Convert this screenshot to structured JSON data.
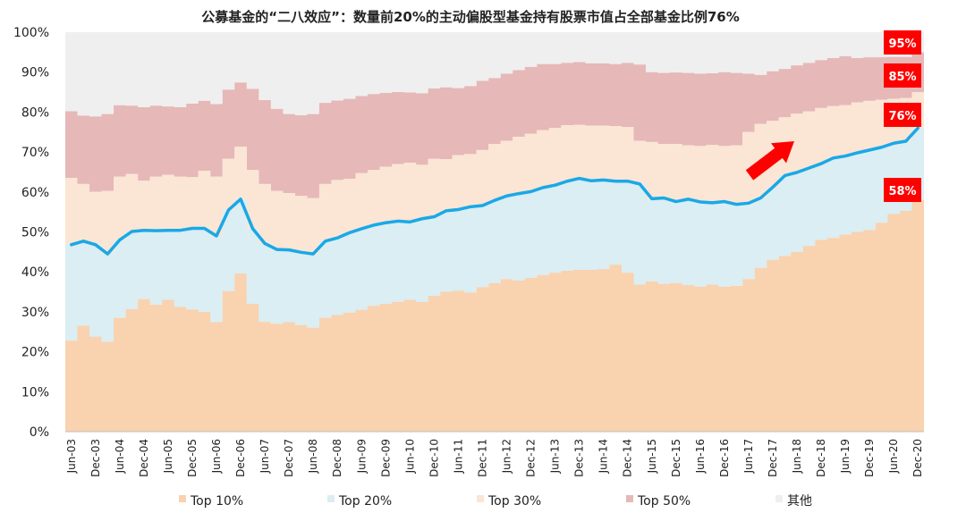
{
  "chart_data": {
    "type": "area",
    "title": "公募基金的“二八效应”：数量前20%的主动偏股型基金持有股票市值占全部基金比例76%",
    "xlabel": "",
    "ylabel": "",
    "ylim": [
      0,
      100
    ],
    "yticks": [
      "0%",
      "10%",
      "20%",
      "30%",
      "40%",
      "50%",
      "60%",
      "70%",
      "80%",
      "90%",
      "100%"
    ],
    "x": [
      "Jun-03",
      "Sep-03",
      "Dec-03",
      "Mar-04",
      "Jun-04",
      "Sep-04",
      "Dec-04",
      "Mar-05",
      "Jun-05",
      "Sep-05",
      "Dec-05",
      "Mar-06",
      "Jun-06",
      "Sep-06",
      "Dec-06",
      "Mar-07",
      "Jun-07",
      "Sep-07",
      "Dec-07",
      "Mar-08",
      "Jun-08",
      "Sep-08",
      "Dec-08",
      "Mar-09",
      "Jun-09",
      "Sep-09",
      "Dec-09",
      "Mar-10",
      "Jun-10",
      "Sep-10",
      "Dec-10",
      "Mar-11",
      "Jun-11",
      "Sep-11",
      "Dec-11",
      "Mar-12",
      "Jun-12",
      "Sep-12",
      "Dec-12",
      "Mar-13",
      "Jun-13",
      "Sep-13",
      "Dec-13",
      "Mar-14",
      "Jun-14",
      "Sep-14",
      "Dec-14",
      "Mar-15",
      "Jun-15",
      "Sep-15",
      "Dec-15",
      "Mar-16",
      "Jun-16",
      "Sep-16",
      "Dec-16",
      "Mar-17",
      "Jun-17",
      "Sep-17",
      "Dec-17",
      "Mar-18",
      "Jun-18",
      "Sep-18",
      "Dec-18",
      "Mar-19",
      "Jun-19",
      "Sep-19",
      "Dec-19",
      "Mar-20",
      "Jun-20",
      "Sep-20",
      "Dec-20"
    ],
    "xtick_labels": [
      "Jun-03",
      "Dec-03",
      "Jun-04",
      "Dec-04",
      "Jun-05",
      "Dec-05",
      "Jun-06",
      "Dec-06",
      "Jun-07",
      "Dec-07",
      "Jun-08",
      "Dec-08",
      "Jun-09",
      "Dec-09",
      "Jun-10",
      "Dec-10",
      "Jun-11",
      "Dec-11",
      "Jun-12",
      "Dec-12",
      "Jun-13",
      "Dec-13",
      "Jun-14",
      "Dec-14",
      "Jun-15",
      "Dec-15",
      "Jun-16",
      "Dec-16",
      "Jun-17",
      "Dec-17",
      "Jun-18",
      "Dec-18",
      "Jun-19",
      "Dec-19",
      "Jun-20",
      "Dec-20"
    ],
    "series": [
      {
        "name": "Top 10%",
        "kind": "area",
        "color": "#f9d2b0",
        "values": [
          22.8,
          26.5,
          23.8,
          22.5,
          28.5,
          30.7,
          33.2,
          31.8,
          33,
          31.2,
          30.6,
          30,
          27.4,
          35.2,
          39.6,
          32,
          27.5,
          27,
          27.4,
          26.7,
          26,
          28.5,
          29.2,
          29.8,
          30.5,
          31.5,
          32,
          32.5,
          33,
          32.5,
          34,
          35,
          35.3,
          34.8,
          36.2,
          37.2,
          38.2,
          37.8,
          38.5,
          39.2,
          39.8,
          40.3,
          40.5,
          40.5,
          40.7,
          41.8,
          39.8,
          36.8,
          37.6,
          37,
          37.2,
          36.7,
          36.3,
          36.8,
          36.3,
          36.5,
          38.2,
          41,
          43,
          44,
          45,
          46.5,
          48,
          48.5,
          49.3,
          50,
          50.5,
          52.3,
          54.5,
          55.3,
          58
        ]
      },
      {
        "name": "Top 20%",
        "kind": "area",
        "color": "#daeef3",
        "values": [
          46.8,
          47.7,
          46.8,
          44.5,
          48,
          50.1,
          50.4,
          50.3,
          50.4,
          50.4,
          50.9,
          50.9,
          49,
          55.5,
          58.2,
          50.8,
          47.1,
          45.6,
          45.5,
          44.9,
          44.5,
          47.7,
          48.5,
          49.8,
          50.8,
          51.7,
          52.3,
          52.7,
          52.5,
          53.3,
          53.8,
          55.3,
          55.6,
          56.3,
          56.6,
          57.9,
          59,
          59.6,
          60.1,
          61.1,
          61.7,
          62.7,
          63.4,
          62.8,
          63,
          62.7,
          62.7,
          62,
          58.3,
          58.5,
          57.6,
          58.2,
          57.5,
          57.3,
          57.6,
          56.9,
          57.2,
          58.5,
          61.2,
          64.1,
          64.9,
          66,
          67.1,
          68.5,
          69,
          69.8,
          70.5,
          71.2,
          72.2,
          72.7,
          76
        ]
      },
      {
        "name": "Top 30%",
        "kind": "area",
        "color": "#fbe5d5",
        "values": [
          63.5,
          62,
          60,
          60.3,
          63.8,
          64.5,
          62.8,
          63.8,
          64.3,
          63.8,
          63.7,
          65.3,
          63.8,
          68.3,
          71.3,
          65.5,
          62,
          60.3,
          59.7,
          59,
          58.5,
          62,
          63,
          63.3,
          64.7,
          65.5,
          66.3,
          67,
          67.3,
          66.8,
          68.3,
          68.2,
          69.2,
          69.5,
          70.5,
          72,
          72.8,
          73.8,
          74.6,
          75.5,
          76,
          76.7,
          76.8,
          76.6,
          76.6,
          76.5,
          76.3,
          72.8,
          72.5,
          72,
          72,
          71.7,
          71.5,
          71.8,
          71.5,
          71.7,
          75,
          77,
          77.8,
          78.7,
          79.6,
          80.2,
          81,
          81.5,
          81.7,
          82.4,
          82.8,
          83.1,
          83.3,
          83.5,
          85
        ]
      },
      {
        "name": "Top 50%",
        "kind": "area",
        "color": "#e6b8b8",
        "values": [
          80.2,
          79.1,
          78.9,
          79.5,
          81.7,
          81.6,
          81.2,
          81.6,
          81.4,
          81.2,
          82.1,
          82.8,
          82,
          85.6,
          87.4,
          85.8,
          83,
          80.8,
          79.5,
          79.2,
          79.5,
          82.3,
          82.9,
          83.3,
          84,
          84.5,
          84.8,
          85,
          84.9,
          84.7,
          85.9,
          86.2,
          86,
          86.5,
          87.8,
          88.5,
          89.6,
          90.5,
          91.3,
          92,
          92,
          92.3,
          92.5,
          92.2,
          92.2,
          92,
          92.3,
          91.9,
          90,
          89.8,
          89.9,
          89.8,
          89.6,
          89.7,
          90,
          89.8,
          89.6,
          89.3,
          90.2,
          90.8,
          91.7,
          92.3,
          93,
          93.5,
          94,
          93.5,
          93.7,
          93.7,
          93.8,
          93.8,
          95
        ]
      },
      {
        "name": "其他",
        "kind": "area",
        "color": "#efefef",
        "values": [
          100,
          100,
          100,
          100,
          100,
          100,
          100,
          100,
          100,
          100,
          100,
          100,
          100,
          100,
          100,
          100,
          100,
          100,
          100,
          100,
          100,
          100,
          100,
          100,
          100,
          100,
          100,
          100,
          100,
          100,
          100,
          100,
          100,
          100,
          100,
          100,
          100,
          100,
          100,
          100,
          100,
          100,
          100,
          100,
          100,
          100,
          100,
          100,
          100,
          100,
          100,
          100,
          100,
          100,
          100,
          100,
          100,
          100,
          100,
          100,
          100,
          100,
          100,
          100,
          100,
          100,
          100,
          100,
          100,
          100,
          100
        ]
      }
    ],
    "line_series_index": 1,
    "line_color": "#1aa8e6",
    "legend_position": "bottom",
    "annotations": [
      "95%",
      "85%",
      "76%",
      "58%"
    ],
    "annotation_color": "#ff0000",
    "arrow": "up-right"
  }
}
